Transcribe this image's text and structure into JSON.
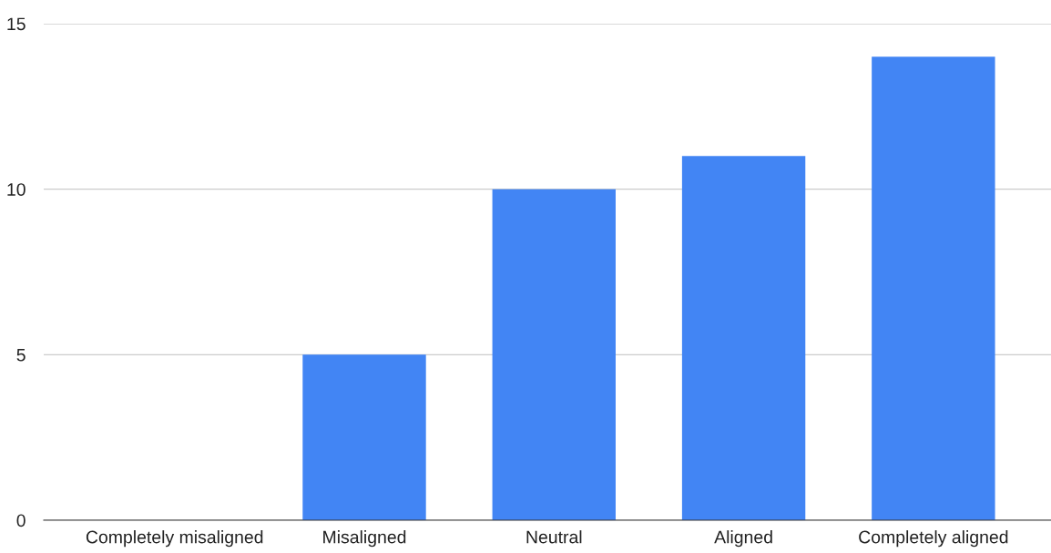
{
  "chart_data": {
    "type": "bar",
    "categories": [
      "Completely misaligned",
      "Misaligned",
      "Neutral",
      "Aligned",
      "Completely aligned"
    ],
    "values": [
      0,
      5,
      10,
      11,
      14
    ],
    "color": "#4285f4",
    "ylim": [
      0,
      15
    ],
    "yticks": [
      0,
      5,
      10,
      15
    ],
    "grid": "y",
    "legend": false
  }
}
